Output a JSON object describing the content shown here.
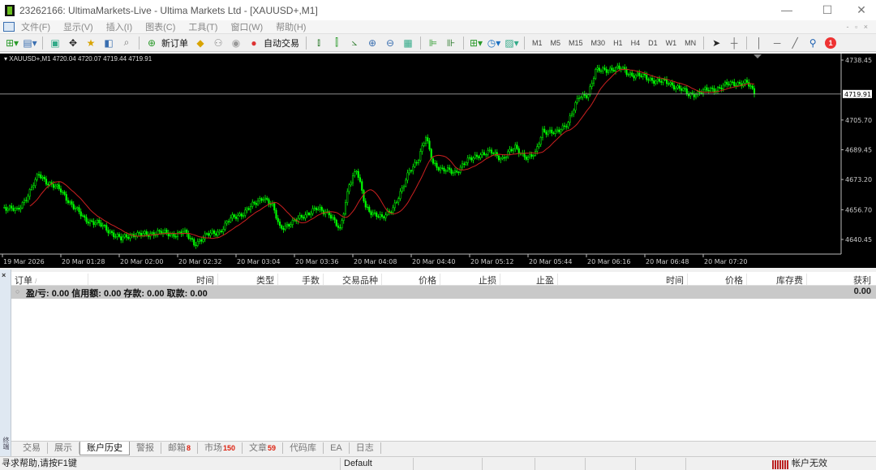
{
  "window": {
    "title": "23262166: UltimaMarkets-Live - Ultima Markets Ltd - [XAUUSD+,M1]",
    "minimize": "—",
    "maximize": "☐",
    "close": "✕"
  },
  "menu": [
    "文件(F)",
    "显示(V)",
    "插入(I)",
    "图表(C)",
    "工具(T)",
    "窗口(W)",
    "帮助(H)"
  ],
  "toolbar": {
    "new_order": "新订单",
    "auto_trading": "自动交易",
    "timeframes": [
      "M1",
      "M5",
      "M15",
      "M30",
      "H1",
      "H4",
      "D1",
      "W1",
      "MN"
    ],
    "notification_count": "1"
  },
  "chart": {
    "legend": "XAUUSD+,M1  4720.04 4720.07 4719.44 4719.91",
    "colors": {
      "background": "#000000",
      "candle": "#00ff00",
      "ma": "#cc2020",
      "bid_line": "#a0a0a0"
    }
  },
  "chart_data": {
    "type": "candlestick",
    "symbol": "XAUUSD+",
    "timeframe": "M1",
    "ohlc_last": {
      "open": 4720.04,
      "high": 4720.07,
      "low": 4719.44,
      "close": 4719.91
    },
    "current_price": "4719.91",
    "y_ticks": [
      "4738.45",
      "4705.70",
      "4689.45",
      "4673.20",
      "4656.70",
      "4640.45"
    ],
    "ylim": [
      4632,
      4742
    ],
    "x_ticks": [
      "19 Mar 2026",
      "20 Mar 01:28",
      "20 Mar 02:00",
      "20 Mar 02:32",
      "20 Mar 03:04",
      "20 Mar 03:36",
      "20 Mar 04:08",
      "20 Mar 04:40",
      "20 Mar 05:12",
      "20 Mar 05:44",
      "20 Mar 06:16",
      "20 Mar 06:48",
      "20 Mar 07:20"
    ],
    "close_path": [
      [
        "00:57",
        4658.2
      ],
      [
        "01:04",
        4656.0
      ],
      [
        "01:10",
        4664.9
      ],
      [
        "01:16",
        4675.9
      ],
      [
        "01:21",
        4671.5
      ],
      [
        "01:28",
        4667.1
      ],
      [
        "01:35",
        4658.2
      ],
      [
        "01:41",
        4651.6
      ],
      [
        "01:48",
        4649.3
      ],
      [
        "01:55",
        4644.9
      ],
      [
        "02:01",
        4640.5
      ],
      [
        "02:08",
        4643.6
      ],
      [
        "02:15",
        4642.7
      ],
      [
        "02:21",
        4644.9
      ],
      [
        "02:28",
        4642.7
      ],
      [
        "02:35",
        4644.9
      ],
      [
        "02:41",
        4638.2
      ],
      [
        "02:48",
        4642.7
      ],
      [
        "02:55",
        4644.9
      ],
      [
        "03:01",
        4651.6
      ],
      [
        "03:08",
        4655.1
      ],
      [
        "03:15",
        4660.4
      ],
      [
        "03:19",
        4664.0
      ],
      [
        "03:24",
        4658.2
      ],
      [
        "03:28",
        4647.1
      ],
      [
        "03:35",
        4649.3
      ],
      [
        "03:41",
        4653.8
      ],
      [
        "03:48",
        4656.9
      ],
      [
        "03:55",
        4655.1
      ],
      [
        "04:01",
        4644.9
      ],
      [
        "04:06",
        4671.5
      ],
      [
        "04:10",
        4678.2
      ],
      [
        "04:15",
        4658.2
      ],
      [
        "04:19",
        4655.1
      ],
      [
        "04:24",
        4651.6
      ],
      [
        "04:30",
        4658.2
      ],
      [
        "04:35",
        4667.1
      ],
      [
        "04:39",
        4678.2
      ],
      [
        "04:44",
        4684.8
      ],
      [
        "04:48",
        4695.9
      ],
      [
        "04:52",
        4682.6
      ],
      [
        "04:57",
        4678.2
      ],
      [
        "05:04",
        4677.3
      ],
      [
        "05:10",
        4682.6
      ],
      [
        "05:17",
        4687.0
      ],
      [
        "05:24",
        4687.9
      ],
      [
        "05:30",
        4684.8
      ],
      [
        "05:37",
        4690.6
      ],
      [
        "05:44",
        4684.8
      ],
      [
        "05:48",
        4687.0
      ],
      [
        "05:52",
        4700.3
      ],
      [
        "05:59",
        4698.1
      ],
      [
        "06:06",
        4704.8
      ],
      [
        "06:12",
        4718.1
      ],
      [
        "06:17",
        4720.3
      ],
      [
        "06:21",
        4732.2
      ],
      [
        "06:28",
        4733.6
      ],
      [
        "06:35",
        4733.6
      ],
      [
        "06:41",
        4730.5
      ],
      [
        "06:48",
        4729.1
      ],
      [
        "06:55",
        4726.9
      ],
      [
        "07:01",
        4726.0
      ],
      [
        "07:08",
        4722.5
      ],
      [
        "07:12",
        4719.4
      ],
      [
        "07:19",
        4721.2
      ],
      [
        "07:26",
        4722.5
      ],
      [
        "07:32",
        4724.7
      ],
      [
        "07:39",
        4726.0
      ],
      [
        "07:44",
        4726.0
      ],
      [
        "07:48",
        4719.91
      ]
    ]
  },
  "terminal": {
    "side_label": "终端",
    "close": "×",
    "columns": [
      "订单",
      "时间",
      "类型",
      "手数",
      "交易品种",
      "价格",
      "止损",
      "止盈",
      "时间",
      "价格",
      "库存费",
      "获利"
    ],
    "sort_indicator": "/",
    "summary": "盈/亏: 0.00  信用额: 0.00  存款: 0.00  取款: 0.00",
    "total": "0.00",
    "tabs": [
      {
        "label": "交易"
      },
      {
        "label": "展示"
      },
      {
        "label": "账户历史",
        "active": true
      },
      {
        "label": "警报"
      },
      {
        "label": "邮箱",
        "badge": "8"
      },
      {
        "label": "市场",
        "badge": "150"
      },
      {
        "label": "文章",
        "badge": "59"
      },
      {
        "label": "代码库"
      },
      {
        "label": "EA"
      },
      {
        "label": "日志"
      }
    ]
  },
  "status": {
    "help": "寻求帮助,请按F1键",
    "profile": "Default",
    "connection": "帐户无效"
  }
}
